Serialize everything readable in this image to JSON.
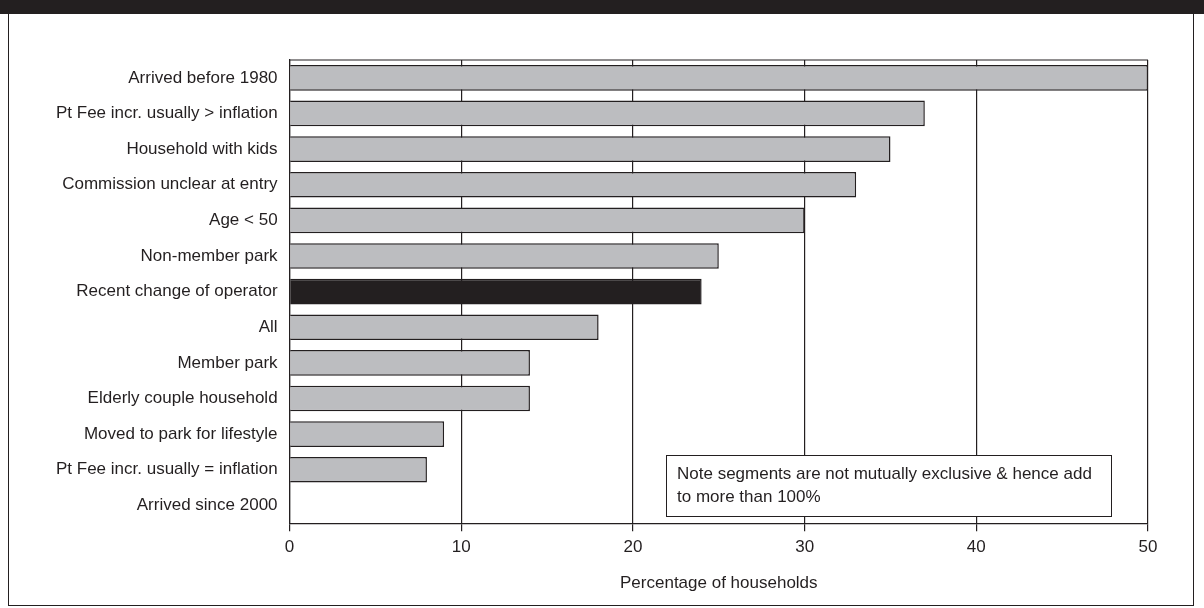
{
  "chart_data": {
    "type": "bar",
    "orientation": "horizontal",
    "xlabel": "Percentage of households",
    "categories": [
      "Arrived before 1980",
      "Pt Fee incr. usually > inflation",
      "Household with kids",
      "Commission unclear at entry",
      "Age < 50",
      "Non-member park",
      "Recent change of operator",
      "All",
      "Member park",
      "Elderly couple household",
      "Moved to park for lifestyle",
      "Pt Fee incr. usually = inflation",
      "Arrived since 2000"
    ],
    "values": [
      50,
      37,
      35,
      33,
      30,
      25,
      24,
      18,
      14,
      14,
      9,
      8,
      0
    ],
    "colors": [
      "#bcbdc0",
      "#bcbdc0",
      "#bcbdc0",
      "#bcbdc0",
      "#bcbdc0",
      "#bcbdc0",
      "#231f20",
      "#bcbdc0",
      "#bcbdc0",
      "#bcbdc0",
      "#bcbdc0",
      "#bcbdc0",
      "#bcbdc0"
    ],
    "xlim": [
      0,
      50
    ],
    "xticks": [
      0,
      10,
      20,
      30,
      40,
      50
    ],
    "grid": "x",
    "legend": false,
    "annotations": [
      "Note segments are not mutually exclusive & hence add to more than 100%"
    ]
  }
}
